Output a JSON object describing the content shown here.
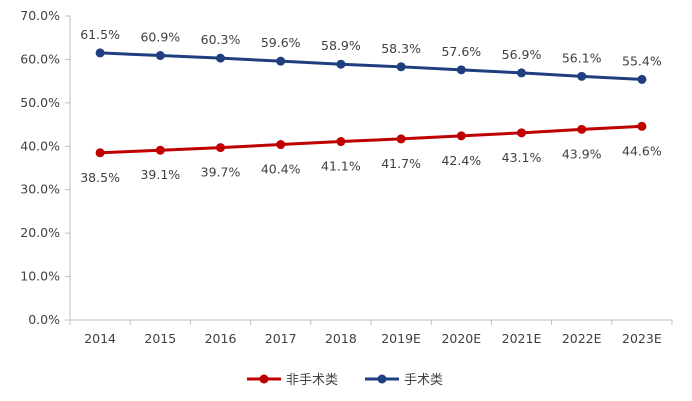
{
  "chart_data": {
    "type": "line",
    "categories": [
      "2014",
      "2015",
      "2016",
      "2017",
      "2018",
      "2019E",
      "2020E",
      "2021E",
      "2022E",
      "2023E"
    ],
    "ylim": [
      0,
      70
    ],
    "yticks": [
      "0.0%",
      "10.0%",
      "20.0%",
      "30.0%",
      "40.0%",
      "50.0%",
      "60.0%",
      "70.0%"
    ],
    "ytick_values": [
      0,
      10,
      20,
      30,
      40,
      50,
      60,
      70
    ],
    "legend_position": "bottom",
    "grid": false,
    "series": [
      {
        "name": "非手术类",
        "color": "#c00000",
        "values": [
          38.5,
          39.1,
          39.7,
          40.4,
          41.1,
          41.7,
          42.4,
          43.1,
          43.9,
          44.6
        ],
        "labels": [
          "38.5%",
          "39.1%",
          "39.7%",
          "40.4%",
          "41.1%",
          "41.7%",
          "42.4%",
          "43.1%",
          "43.9%",
          "44.6%"
        ],
        "label_side": "below"
      },
      {
        "name": "手术类",
        "color": "#1f3f7f",
        "values": [
          61.5,
          60.9,
          60.3,
          59.6,
          58.9,
          58.3,
          57.6,
          56.9,
          56.1,
          55.4
        ],
        "labels": [
          "61.5%",
          "60.9%",
          "60.3%",
          "59.6%",
          "58.9%",
          "58.3%",
          "57.6%",
          "56.9%",
          "56.1%",
          "55.4%"
        ],
        "label_side": "above"
      }
    ]
  }
}
